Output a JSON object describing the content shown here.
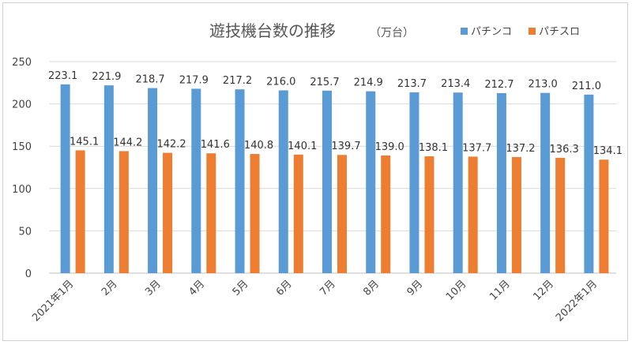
{
  "chart_data": {
    "type": "bar",
    "title": "遊技機台数の推移",
    "subtitle": "（万台）",
    "categories": [
      "2021年1月",
      "2月",
      "3月",
      "4月",
      "5月",
      "6月",
      "7月",
      "8月",
      "9月",
      "10月",
      "11月",
      "12月",
      "2022年1月"
    ],
    "series": [
      {
        "name": "パチンコ",
        "color": "#5b9bd5",
        "values": [
          223.1,
          221.9,
          218.7,
          217.9,
          217.2,
          216.0,
          215.7,
          214.9,
          213.7,
          213.4,
          212.7,
          213.0,
          211.0
        ]
      },
      {
        "name": "パチスロ",
        "color": "#ed7d31",
        "values": [
          145.1,
          144.2,
          142.2,
          141.6,
          140.8,
          140.1,
          139.7,
          139.0,
          138.1,
          137.7,
          137.2,
          136.3,
          134.1
        ]
      }
    ],
    "ylim": [
      0,
      250
    ],
    "yticks": [
      0,
      50,
      100,
      150,
      200,
      250
    ],
    "grid": true,
    "legend": "top-right"
  }
}
